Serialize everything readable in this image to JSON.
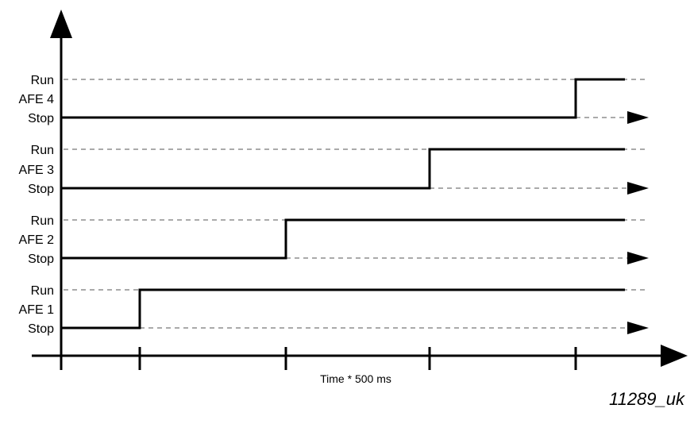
{
  "x_axis_label": "Time * 500 ms",
  "figure_id": "11289_uk",
  "colors": {
    "line": "#000000",
    "dash": "#777777",
    "background": "#ffffff"
  },
  "channels": [
    {
      "name": "AFE 1",
      "run_label": "Run",
      "stop_label": "Stop",
      "start_at_tick": 1
    },
    {
      "name": "AFE 2",
      "run_label": "Run",
      "stop_label": "Stop",
      "start_at_tick": 2
    },
    {
      "name": "AFE 3",
      "run_label": "Run",
      "stop_label": "Stop",
      "start_at_tick": 3
    },
    {
      "name": "AFE 4",
      "run_label": "Run",
      "stop_label": "Stop",
      "start_at_tick": 4
    }
  ]
}
